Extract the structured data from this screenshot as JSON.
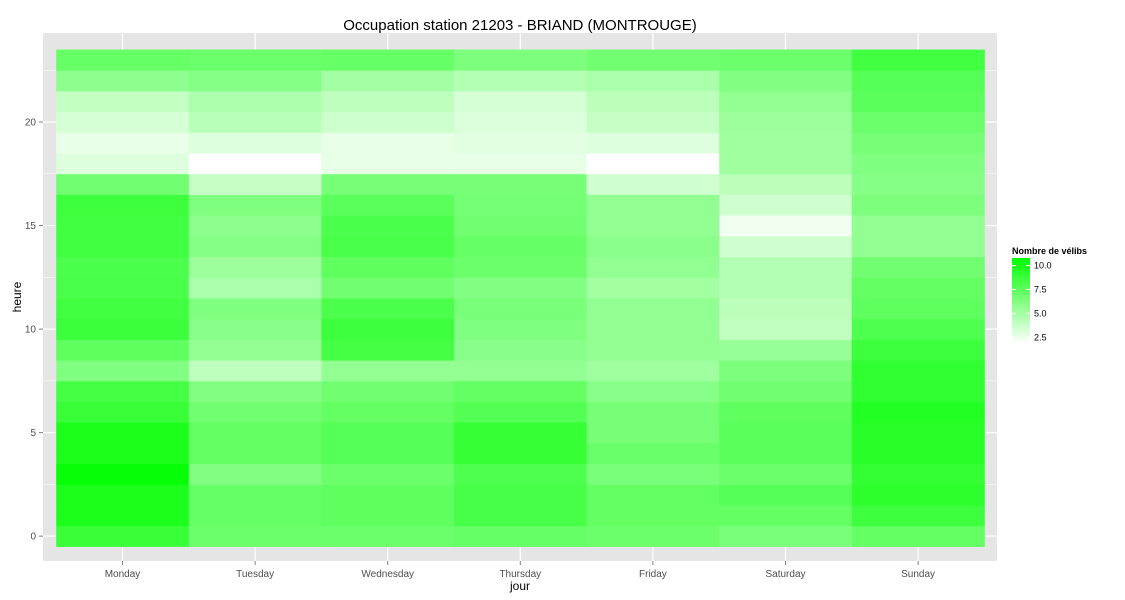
{
  "chart_data": {
    "type": "heatmap",
    "title": "Occupation station 21203 - BRIAND (MONTROUGE)",
    "xlabel": "jour",
    "ylabel": "heure",
    "x_categories": [
      "Monday",
      "Tuesday",
      "Wednesday",
      "Thursday",
      "Friday",
      "Saturday",
      "Sunday"
    ],
    "y_hours": [
      0,
      1,
      2,
      3,
      4,
      5,
      6,
      7,
      8,
      9,
      10,
      11,
      12,
      13,
      14,
      15,
      16,
      17,
      18,
      19,
      20,
      21,
      22,
      23
    ],
    "y_ticks": [
      0,
      5,
      10,
      15,
      20
    ],
    "y_range": [
      -1.2,
      24.3
    ],
    "grid": true,
    "color_scale": {
      "low": "#ffffff",
      "high": "#00ff00",
      "min": 1.8,
      "max": 10.8
    },
    "legend": {
      "title": "Nombre de vélibs",
      "position": "right",
      "labels": [
        "10.0",
        "7.5",
        "5.0",
        "2.5"
      ],
      "label_values": [
        10.0,
        7.5,
        5.0,
        2.5
      ]
    },
    "values": [
      [
        8.8,
        7.0,
        7.0,
        7.2,
        7.0,
        6.5,
        7.3
      ],
      [
        9.8,
        7.2,
        7.5,
        8.3,
        7.3,
        7.3,
        8.6
      ],
      [
        9.8,
        7.2,
        7.5,
        8.3,
        7.3,
        7.8,
        9.2
      ],
      [
        10.6,
        6.2,
        7.0,
        8.0,
        6.5,
        7.0,
        9.0
      ],
      [
        9.8,
        7.3,
        7.8,
        8.9,
        7.1,
        7.6,
        9.4
      ],
      [
        9.8,
        7.3,
        7.8,
        8.9,
        6.6,
        7.6,
        9.4
      ],
      [
        8.8,
        6.8,
        7.3,
        7.9,
        6.6,
        7.5,
        9.6
      ],
      [
        8.4,
        6.2,
        6.8,
        7.3,
        6.0,
        6.8,
        9.1
      ],
      [
        6.3,
        4.1,
        5.6,
        5.7,
        5.2,
        6.4,
        9.1
      ],
      [
        7.5,
        5.6,
        8.4,
        6.0,
        5.6,
        5.5,
        8.6
      ],
      [
        8.7,
        6.0,
        8.6,
        6.3,
        5.6,
        4.0,
        8.0
      ],
      [
        8.5,
        6.3,
        8.1,
        6.5,
        5.7,
        4.2,
        7.5
      ],
      [
        8.2,
        4.8,
        6.8,
        6.2,
        5.1,
        4.5,
        7.3
      ],
      [
        8.1,
        5.3,
        7.4,
        7.0,
        5.7,
        4.5,
        6.8
      ],
      [
        8.5,
        6.1,
        8.2,
        7.2,
        5.9,
        3.5,
        5.6
      ],
      [
        8.5,
        5.8,
        8.1,
        6.8,
        5.7,
        2.3,
        5.6
      ],
      [
        8.6,
        6.3,
        7.6,
        6.7,
        5.7,
        3.5,
        6.4
      ],
      [
        6.8,
        3.8,
        6.6,
        6.6,
        3.5,
        4.2,
        6.1
      ],
      [
        3.0,
        1.8,
        2.7,
        2.7,
        1.8,
        5.2,
        6.3
      ],
      [
        2.6,
        3.0,
        2.6,
        2.8,
        3.0,
        5.2,
        6.6
      ],
      [
        3.3,
        4.3,
        3.6,
        3.1,
        3.8,
        5.3,
        7.0
      ],
      [
        3.9,
        4.7,
        4.1,
        3.3,
        4.2,
        5.7,
        7.6
      ],
      [
        5.8,
        6.1,
        5.0,
        4.5,
        4.8,
        6.2,
        7.8
      ],
      [
        7.2,
        7.0,
        7.2,
        6.4,
        6.8,
        7.0,
        8.5
      ]
    ]
  }
}
